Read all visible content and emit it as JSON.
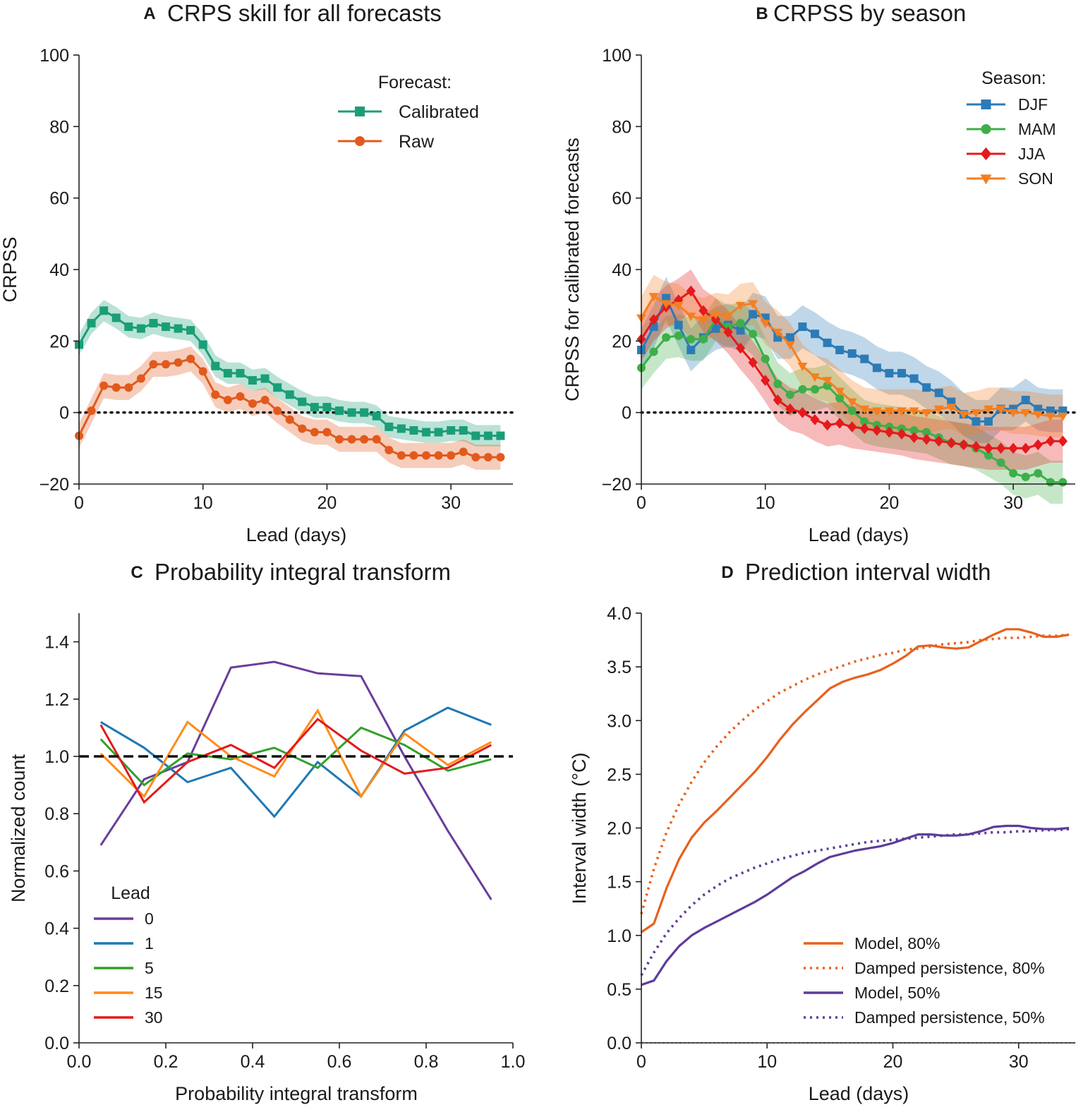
{
  "chart_data": [
    {
      "id": "A",
      "type": "line",
      "panel_letter": "A",
      "title": "CRPS skill for all forecasts",
      "xlabel": "Lead (days)",
      "ylabel": "CRPSS",
      "xlim": [
        0,
        35
      ],
      "ylim": [
        -20,
        100
      ],
      "xticks": [
        0,
        10,
        20,
        30
      ],
      "yticks": [
        -20,
        0,
        20,
        40,
        60,
        80,
        100
      ],
      "reference_line": 0,
      "legend_title": "Forecast:",
      "legend_position": "upper-right",
      "series": [
        {
          "name": "Calibrated",
          "color": "#1b9e77",
          "marker": "square",
          "band": 3,
          "values": [
            19,
            25,
            28.5,
            26.5,
            24,
            23.5,
            25,
            24,
            23.5,
            23,
            19,
            13,
            11,
            11,
            9,
            9.5,
            7,
            5,
            3,
            1.5,
            1.5,
            0.5,
            0,
            0,
            -1,
            -4,
            -4.5,
            -5,
            -5.5,
            -5.5,
            -5,
            -5,
            -6.5,
            -6.5,
            -6.5
          ]
        },
        {
          "name": "Raw",
          "color": "#e15a1d",
          "marker": "circle",
          "band": 3.5,
          "values": [
            -6.5,
            0.5,
            7.5,
            7,
            7,
            9.5,
            13.5,
            13.5,
            14,
            15,
            11.5,
            5,
            3.5,
            4.5,
            2.5,
            3.5,
            0.5,
            -2,
            -4.5,
            -5.5,
            -5.5,
            -7.5,
            -7.5,
            -7.5,
            -7.5,
            -10.5,
            -12,
            -12,
            -12,
            -12,
            -12,
            -11,
            -12.5,
            -12.5,
            -12.5
          ]
        }
      ]
    },
    {
      "id": "B",
      "type": "line",
      "panel_letter": "B",
      "title": "CRPSS by season",
      "xlabel": "Lead (days)",
      "ylabel": "CRPSS for calibrated forecasts",
      "xlim": [
        0,
        35
      ],
      "ylim": [
        -20,
        100
      ],
      "xticks": [
        0,
        10,
        20,
        30
      ],
      "yticks": [
        -20,
        0,
        20,
        40,
        60,
        80,
        100
      ],
      "reference_line": 0,
      "legend_title": "Season:",
      "legend_position": "upper-right",
      "series": [
        {
          "name": "DJF",
          "color": "#2c7bb6",
          "marker": "square",
          "band": 6,
          "values": [
            17.5,
            24,
            32,
            24.5,
            17.5,
            21,
            23.5,
            24.5,
            23,
            27.5,
            26.5,
            21,
            21,
            24,
            22,
            19.5,
            17.5,
            16.5,
            15,
            12.5,
            11,
            11,
            9.5,
            7,
            5.5,
            3,
            -0.5,
            -2.5,
            -2.5,
            1,
            1,
            3.5,
            1,
            0.5,
            0.5
          ]
        },
        {
          "name": "MAM",
          "color": "#3fae4a",
          "marker": "circle",
          "band": 6,
          "values": [
            12.5,
            17,
            21,
            21.5,
            20.5,
            20.5,
            26,
            24,
            25,
            22,
            15,
            8,
            5,
            6.5,
            6.5,
            7.5,
            4,
            0.5,
            -2.5,
            -3.5,
            -4,
            -4.5,
            -5,
            -5.5,
            -7,
            -8.5,
            -9,
            -10,
            -12,
            -14,
            -17,
            -18,
            -17,
            -19.5,
            -19.5
          ]
        },
        {
          "name": "JJA",
          "color": "#e41a1c",
          "marker": "diamond",
          "band": 6,
          "values": [
            20.5,
            26,
            29.5,
            31.5,
            34,
            28.5,
            26,
            22.5,
            18,
            14,
            9,
            3.5,
            1,
            0,
            -2,
            -3.5,
            -3,
            -4,
            -4.5,
            -5,
            -5.5,
            -6,
            -7,
            -7.5,
            -8,
            -8.5,
            -9,
            -9.5,
            -10,
            -10,
            -10,
            -10,
            -9,
            -8,
            -8
          ]
        },
        {
          "name": "SON",
          "color": "#f57f20",
          "marker": "triangle-down",
          "band": 6,
          "values": [
            26.5,
            32.5,
            30.5,
            30,
            27,
            26,
            27.5,
            27,
            30,
            30.5,
            25,
            22.5,
            19,
            13,
            10,
            9,
            6,
            3,
            1,
            0.5,
            0.5,
            0.5,
            0.5,
            0,
            1,
            1.5,
            -0.5,
            0,
            1,
            1,
            0,
            0,
            -0.5,
            -1,
            -1
          ]
        }
      ]
    },
    {
      "id": "C",
      "type": "line",
      "panel_letter": "C",
      "title": "Probability integral transform",
      "xlabel": "Probability integral transform",
      "ylabel": "Normalized count",
      "xlim": [
        0.0,
        1.0
      ],
      "ylim": [
        0.0,
        1.5
      ],
      "xticks": [
        "0.0",
        "0.2",
        "0.4",
        "0.6",
        "0.8",
        "1.0"
      ],
      "yticks": [
        "0.0",
        "0.2",
        "0.4",
        "0.6",
        "0.8",
        "1.0",
        "1.2",
        "1.4"
      ],
      "reference_line": 1.0,
      "legend_title": "Lead",
      "legend_position": "lower-left",
      "x": [
        0.05,
        0.15,
        0.25,
        0.35,
        0.45,
        0.55,
        0.65,
        0.75,
        0.85,
        0.95
      ],
      "series": [
        {
          "name": "0",
          "color": "#6a3d9a",
          "values": [
            0.69,
            0.92,
            0.98,
            1.31,
            1.33,
            1.29,
            1.28,
            1.0,
            0.74,
            0.5
          ]
        },
        {
          "name": "1",
          "color": "#1f78b4",
          "values": [
            1.12,
            1.03,
            0.91,
            0.96,
            0.79,
            0.98,
            0.86,
            1.09,
            1.17,
            1.11
          ]
        },
        {
          "name": "5",
          "color": "#33a02c",
          "values": [
            1.06,
            0.9,
            1.01,
            0.99,
            1.03,
            0.96,
            1.1,
            1.04,
            0.95,
            0.99
          ]
        },
        {
          "name": "15",
          "color": "#ff8c1a",
          "values": [
            1.01,
            0.86,
            1.12,
            1.0,
            0.93,
            1.16,
            0.86,
            1.08,
            0.97,
            1.05
          ]
        },
        {
          "name": "30",
          "color": "#e31a1c",
          "values": [
            1.11,
            0.84,
            0.98,
            1.04,
            0.96,
            1.13,
            1.02,
            0.94,
            0.96,
            1.04
          ]
        }
      ]
    },
    {
      "id": "D",
      "type": "line",
      "panel_letter": "D",
      "title": "Prediction interval width",
      "xlabel": "Lead (days)",
      "ylabel": "Interval width (°C)",
      "xlim": [
        0,
        34.5
      ],
      "ylim": [
        0.0,
        4.0
      ],
      "xticks": [
        0,
        10,
        20,
        30
      ],
      "yticks": [
        "0.0",
        "0.5",
        "1.0",
        "1.5",
        "2.0",
        "2.5",
        "3.0",
        "3.5",
        "4.0"
      ],
      "reference_line": 0.0,
      "legend_position": "lower-right",
      "series": [
        {
          "name": "Model, 80%",
          "color": "#e8601c",
          "dash": "solid",
          "values": [
            1.03,
            1.11,
            1.44,
            1.71,
            1.91,
            2.05,
            2.16,
            2.28,
            2.4,
            2.52,
            2.66,
            2.82,
            2.96,
            3.08,
            3.19,
            3.3,
            3.36,
            3.4,
            3.43,
            3.47,
            3.53,
            3.6,
            3.69,
            3.7,
            3.68,
            3.67,
            3.68,
            3.74,
            3.8,
            3.85,
            3.85,
            3.82,
            3.78,
            3.78,
            3.8
          ]
        },
        {
          "name": "Damped persistence, 80%",
          "color": "#e8601c",
          "dash": "dotted",
          "values": [
            1.2,
            1.62,
            1.96,
            2.22,
            2.43,
            2.61,
            2.76,
            2.89,
            3.0,
            3.1,
            3.18,
            3.26,
            3.32,
            3.38,
            3.43,
            3.47,
            3.51,
            3.55,
            3.58,
            3.61,
            3.63,
            3.66,
            3.67,
            3.69,
            3.71,
            3.72,
            3.73,
            3.75,
            3.76,
            3.77,
            3.77,
            3.78,
            3.79,
            3.79,
            3.8
          ]
        },
        {
          "name": "Model, 50%",
          "color": "#5e3c99",
          "dash": "solid",
          "values": [
            0.54,
            0.58,
            0.76,
            0.9,
            1.0,
            1.07,
            1.13,
            1.19,
            1.25,
            1.31,
            1.38,
            1.46,
            1.54,
            1.6,
            1.67,
            1.73,
            1.76,
            1.79,
            1.81,
            1.83,
            1.86,
            1.9,
            1.94,
            1.94,
            1.93,
            1.93,
            1.94,
            1.97,
            2.01,
            2.02,
            2.02,
            2.0,
            1.99,
            1.99,
            2.0
          ]
        },
        {
          "name": "Damped persistence, 50%",
          "color": "#5e3c99",
          "dash": "dotted",
          "values": [
            0.63,
            0.84,
            1.02,
            1.16,
            1.28,
            1.38,
            1.46,
            1.53,
            1.58,
            1.63,
            1.67,
            1.71,
            1.74,
            1.77,
            1.79,
            1.81,
            1.83,
            1.85,
            1.87,
            1.88,
            1.89,
            1.9,
            1.91,
            1.92,
            1.93,
            1.94,
            1.94,
            1.95,
            1.96,
            1.96,
            1.97,
            1.97,
            1.98,
            1.98,
            1.99
          ]
        }
      ]
    }
  ]
}
